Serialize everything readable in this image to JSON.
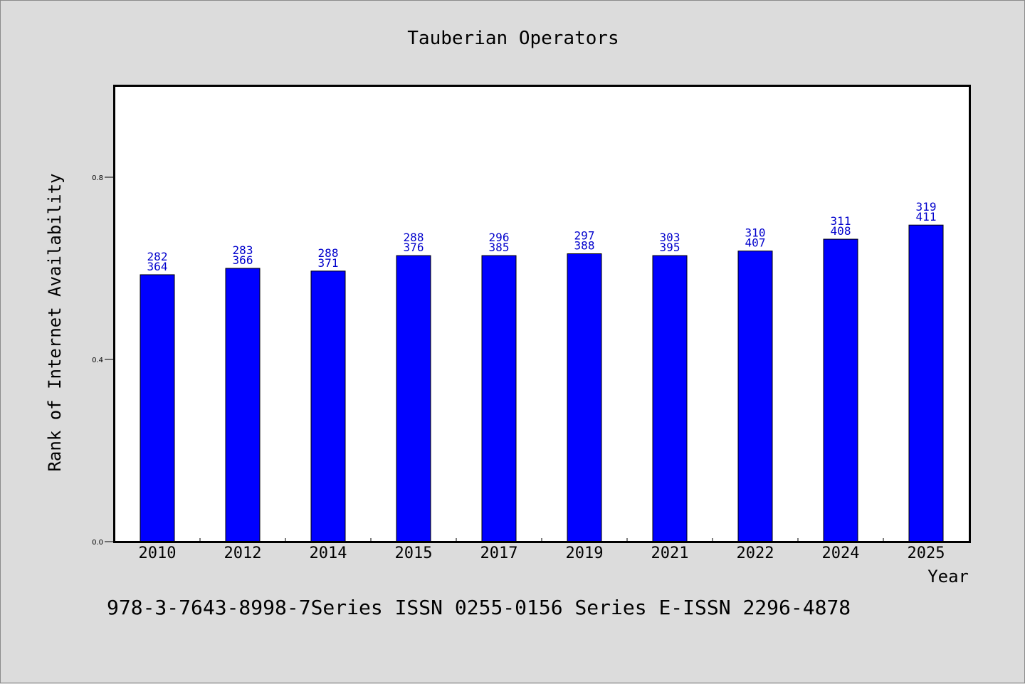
{
  "chart_data": {
    "type": "bar",
    "title": "Tauberian Operators",
    "xlabel": "Year",
    "ylabel": "Rank of Internet Availability",
    "categories": [
      "2010",
      "2012",
      "2014",
      "2015",
      "2017",
      "2019",
      "2021",
      "2022",
      "2024",
      "2025"
    ],
    "values": [
      0.586,
      0.6,
      0.594,
      0.628,
      0.628,
      0.632,
      0.628,
      0.638,
      0.664,
      0.695
    ],
    "label_top": [
      "282",
      "283",
      "288",
      "288",
      "296",
      "297",
      "303",
      "310",
      "311",
      "319"
    ],
    "label_bottom": [
      "364",
      "366",
      "371",
      "376",
      "385",
      "388",
      "395",
      "407",
      "408",
      "411"
    ],
    "yticks": [
      "0.0",
      "0.4",
      "0.8"
    ],
    "ylim": [
      0,
      1.0
    ],
    "grid": false,
    "bar_color": "#0000ff",
    "label_color": "#0000cc"
  },
  "footer": "978-3-7643-8998-7Series ISSN 0255-0156 Series E-ISSN 2296-4878"
}
